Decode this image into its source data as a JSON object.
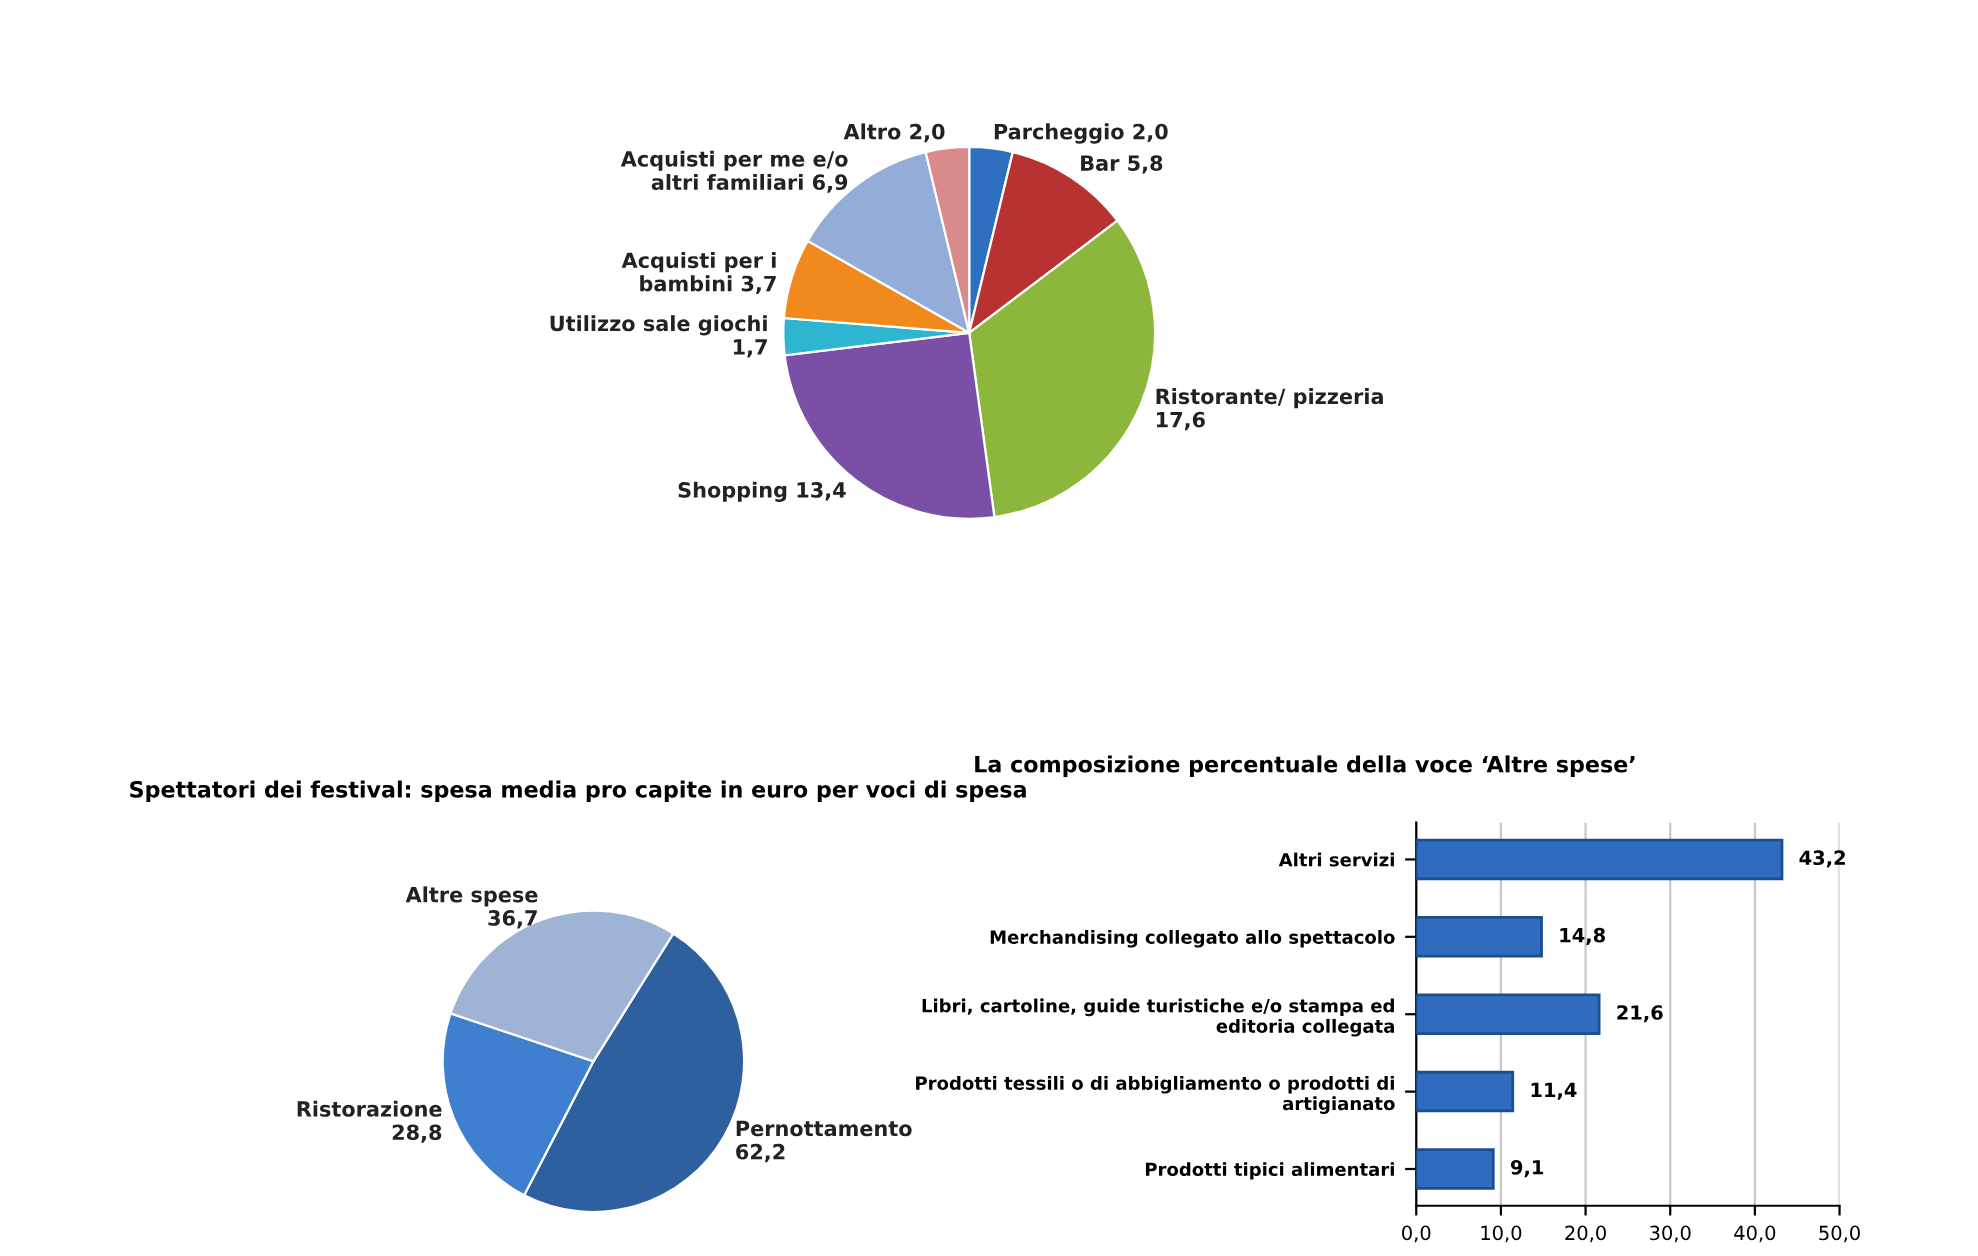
{
  "chart_data": [
    {
      "type": "pie",
      "categories": [
        "Parcheggio",
        "Bar",
        "Ristorante/ pizzeria",
        "Shopping",
        "Utilizzo sale giochi",
        "Acquisti per i bambini",
        "Acquisti per me e/o altri familiari",
        "Altro"
      ],
      "values": [
        2.0,
        5.8,
        17.6,
        13.4,
        1.7,
        3.7,
        6.9,
        2.0
      ],
      "value_labels": [
        "2,0",
        "5,8",
        "17,6",
        "13,4",
        "1,7",
        "3,7",
        "6,9",
        "2,0"
      ],
      "colors": [
        "#2f6fc0",
        "#b83232",
        "#8db63c",
        "#7b4fa6",
        "#2eb5d0",
        "#f08a1c",
        "#94acd8",
        "#d98a8a"
      ]
    },
    {
      "type": "pie",
      "title": "Spettatori dei festival: spesa media pro capite in euro per voci di spesa",
      "categories": [
        "Pernottamento",
        "Ristorazione",
        "Altre spese"
      ],
      "values": [
        62.2,
        28.8,
        36.7
      ],
      "value_labels": [
        "62,2",
        "28,8",
        "36,7"
      ],
      "colors": [
        "#2e5f9e",
        "#3f7fcf",
        "#9fb3d6"
      ]
    },
    {
      "type": "bar",
      "orientation": "horizontal",
      "title": "La composizione percentuale della voce ‘Altre spese’",
      "categories": [
        "Altri servizi",
        "Merchandising collegato allo spettacolo",
        "Libri, cartoline, guide turistiche e/o stampa ed editoria collegata",
        "Prodotti tessili o di abbigliamento o prodotti di artigianato",
        "Prodotti tipici alimentari"
      ],
      "values": [
        43.2,
        14.8,
        21.6,
        11.4,
        9.1
      ],
      "value_labels": [
        "43,2",
        "14,8",
        "21,6",
        "11,4",
        "9,1"
      ],
      "color": "#2f6cc0",
      "xlim": [
        0,
        50
      ],
      "xticks": [
        {
          "value": 0,
          "label": "0,0"
        },
        {
          "value": 10,
          "label": "10,0"
        },
        {
          "value": 20,
          "label": "20,0"
        },
        {
          "value": 30,
          "label": "30,0"
        },
        {
          "value": 40,
          "label": "40,0"
        },
        {
          "value": 50,
          "label": "50,0"
        }
      ],
      "grid": "x"
    }
  ]
}
